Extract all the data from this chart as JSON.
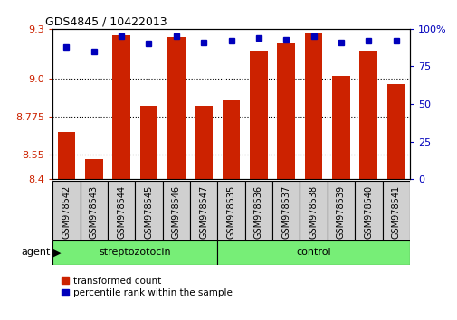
{
  "title": "GDS4845 / 10422013",
  "samples": [
    "GSM978542",
    "GSM978543",
    "GSM978544",
    "GSM978545",
    "GSM978546",
    "GSM978547",
    "GSM978535",
    "GSM978536",
    "GSM978537",
    "GSM978538",
    "GSM978539",
    "GSM978540",
    "GSM978541"
  ],
  "bar_values": [
    8.68,
    8.52,
    9.26,
    8.84,
    9.25,
    8.84,
    8.87,
    9.17,
    9.21,
    9.28,
    9.02,
    9.17,
    8.97
  ],
  "dot_values": [
    88,
    85,
    95,
    90,
    95,
    91,
    92,
    94,
    93,
    95,
    91,
    92,
    92
  ],
  "group_labels": [
    "streptozotocin",
    "control"
  ],
  "group_sizes": [
    6,
    7
  ],
  "ylim_left": [
    8.4,
    9.3
  ],
  "ylim_right": [
    0,
    100
  ],
  "yticks_left": [
    8.4,
    8.55,
    8.775,
    9.0,
    9.3
  ],
  "yticks_right": [
    0,
    25,
    50,
    75,
    100
  ],
  "bar_color": "#cc2200",
  "dot_color": "#0000bb",
  "background_color": "#ffffff",
  "plot_bg_color": "#ffffff",
  "xtick_bg_color": "#d0d0d0",
  "group_box_color": "#77ee77",
  "grid_color": "#000000",
  "legend_items": [
    "transformed count",
    "percentile rank within the sample"
  ],
  "figsize": [
    5.06,
    3.54
  ],
  "dpi": 100
}
